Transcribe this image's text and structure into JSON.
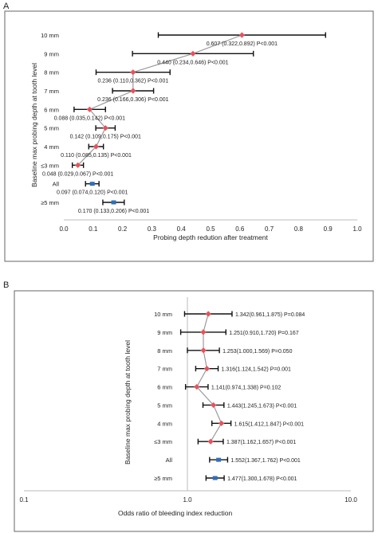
{
  "colors": {
    "mid_point": "#e8525a",
    "summary_point": "#2f6fb7",
    "line": "#9a9a9a",
    "error_bar": "#111111"
  },
  "chart_data": [
    {
      "panel": "A",
      "type": "forest",
      "xlabel": "Probing depth redution after treatment",
      "ylabel": "Baseline max probing depth at tooth level",
      "xlim": [
        0,
        1.0
      ],
      "ticks": [
        0,
        0.1,
        0.2,
        0.3,
        0.4,
        0.5,
        0.6,
        0.7,
        0.8,
        0.9,
        1.0
      ],
      "tick_labels": [
        "0.0",
        "0.1",
        "0.2",
        "0.3",
        "0.4",
        "0.5",
        "0.6",
        "0.7",
        "0.8",
        "0.9",
        "1.0"
      ],
      "rows": [
        {
          "category": "10 mm",
          "value": 0.607,
          "lo": 0.322,
          "hi": 0.892,
          "label": "0.607 (0.322,0.892) P<0.001",
          "kind": "strata"
        },
        {
          "category": "9 mm",
          "value": 0.44,
          "lo": 0.234,
          "hi": 0.646,
          "label": "0.440 (0.234,0.646) P<0.001",
          "kind": "strata"
        },
        {
          "category": "8 mm",
          "value": 0.236,
          "lo": 0.11,
          "hi": 0.362,
          "label": "0.236 (0.110,0.362) P<0.001",
          "kind": "strata"
        },
        {
          "category": "7 mm",
          "value": 0.236,
          "lo": 0.166,
          "hi": 0.306,
          "label": "0.236 (0.166,0.306) P<0.001",
          "kind": "strata"
        },
        {
          "category": "6 mm",
          "value": 0.088,
          "lo": 0.035,
          "hi": 0.142,
          "label": "0.088 (0.035,0.142) P<0.001",
          "kind": "strata"
        },
        {
          "category": "5 mm",
          "value": 0.142,
          "lo": 0.109,
          "hi": 0.175,
          "label": "0.142 (0.109,0.175) P<0.001",
          "kind": "strata"
        },
        {
          "category": "4 mm",
          "value": 0.11,
          "lo": 0.085,
          "hi": 0.135,
          "label": "0.110 (0.085,0.135) P<0.001",
          "kind": "strata"
        },
        {
          "category": "≤3 mm",
          "value": 0.048,
          "lo": 0.029,
          "hi": 0.067,
          "label": "0.048 (0.029,0.067) P<0.001",
          "kind": "strata"
        },
        {
          "category": "All",
          "value": 0.097,
          "lo": 0.074,
          "hi": 0.12,
          "label": "0.097 (0.074,0.120) P<0.001",
          "kind": "summary"
        },
        {
          "category": "≥5 mm",
          "value": 0.17,
          "lo": 0.133,
          "hi": 0.206,
          "label": "0.170 (0.133,0.206) P<0.001",
          "kind": "summary"
        }
      ]
    },
    {
      "panel": "B",
      "type": "forest",
      "xlabel": "Odds ratio of bleeding index reduction",
      "ylabel": "Baseline max probing depth at tooth level",
      "xscale": "log",
      "xlim": [
        0.1,
        10
      ],
      "ticks": [
        0.1,
        1,
        10
      ],
      "tick_labels": [
        "0.1",
        "1.0",
        "10.0"
      ],
      "reference_line": 1,
      "rows": [
        {
          "category": "10 mm",
          "value": 1.342,
          "lo": 0.961,
          "hi": 1.875,
          "label": "1.342(0.961,1.875) P=0.084",
          "kind": "strata"
        },
        {
          "category": "9 mm",
          "value": 1.251,
          "lo": 0.91,
          "hi": 1.72,
          "label": "1.251(0.910,1.720) P=0.167",
          "kind": "strata"
        },
        {
          "category": "8 mm",
          "value": 1.253,
          "lo": 1.0,
          "hi": 1.569,
          "label": "1.253(1.000,1.569) P=0.050",
          "kind": "strata"
        },
        {
          "category": "7 mm",
          "value": 1.316,
          "lo": 1.124,
          "hi": 1.542,
          "label": "1.316(1.124,1.542) P=0.001",
          "kind": "strata"
        },
        {
          "category": "6 mm",
          "value": 1.141,
          "lo": 0.974,
          "hi": 1.338,
          "label": "1.141(0.974,1.338) P=0.102",
          "kind": "strata"
        },
        {
          "category": "5 mm",
          "value": 1.443,
          "lo": 1.245,
          "hi": 1.673,
          "label": "1.443(1.245,1.673) P<0.001",
          "kind": "strata"
        },
        {
          "category": "4 mm",
          "value": 1.615,
          "lo": 1.412,
          "hi": 1.847,
          "label": "1.615(1.412,1.847) P<0.001",
          "kind": "strata"
        },
        {
          "category": "≤3 mm",
          "value": 1.387,
          "lo": 1.162,
          "hi": 1.657,
          "label": "1.387(1.162,1.657) P<0.001",
          "kind": "strata"
        },
        {
          "category": "All",
          "value": 1.552,
          "lo": 1.367,
          "hi": 1.762,
          "label": "1.552(1.367,1.762) P<0.001",
          "kind": "summary"
        },
        {
          "category": "≥5 mm",
          "value": 1.477,
          "lo": 1.3,
          "hi": 1.678,
          "label": "1.477(1.300,1.678) P<0.001",
          "kind": "summary"
        }
      ]
    }
  ]
}
